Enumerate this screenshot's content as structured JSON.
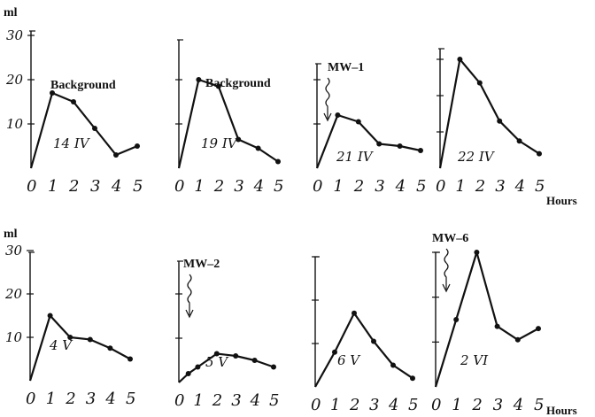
{
  "figure": {
    "ylabel_top": "ml",
    "ylabel_bottom": "ml",
    "xunit_top": "Hours",
    "xunit_bottom": "Hours",
    "top_ytick_labels": [
      "10",
      "20",
      "30"
    ],
    "bottom_ytick_labels": [
      "10",
      "20",
      "30"
    ],
    "xtick_labels": [
      "0",
      "1",
      "2",
      "3",
      "4",
      "5"
    ]
  },
  "chart_data": [
    {
      "type": "line",
      "row": "top",
      "x": [
        0,
        1,
        2,
        3,
        4,
        5
      ],
      "values": [
        0,
        17,
        15,
        9,
        3,
        5
      ],
      "date_label": "14 IV",
      "annotation": "Background",
      "show_yticks": true,
      "show_xticks": true,
      "ylim": [
        0,
        30
      ],
      "xlim": [
        0,
        5.5
      ]
    },
    {
      "type": "line",
      "row": "top",
      "x": [
        0,
        1,
        2,
        3,
        4,
        5
      ],
      "values": [
        0,
        20,
        18.5,
        6.5,
        4.5,
        1.5
      ],
      "date_label": "19 IV",
      "annotation": "Background",
      "show_yticks": false,
      "show_xticks": false,
      "ylim": [
        0,
        30
      ],
      "xlim": [
        0,
        5.5
      ]
    },
    {
      "type": "line",
      "row": "top",
      "x": [
        0,
        1,
        2,
        3,
        4,
        5
      ],
      "values": [
        0,
        12,
        10.5,
        5.5,
        5,
        4
      ],
      "date_label": "21 IV",
      "annotation": "MW–1",
      "show_yticks": false,
      "show_xticks": false,
      "ylim": [
        0,
        30
      ],
      "xlim": [
        0,
        5.5
      ]
    },
    {
      "type": "line",
      "row": "top",
      "x": [
        0,
        1,
        2,
        3,
        4,
        5
      ],
      "values": [
        0,
        30,
        23.5,
        13,
        7.5,
        4
      ],
      "date_label": "22 IV",
      "annotation": "",
      "show_yticks": false,
      "show_xticks": false,
      "ylim": [
        0,
        30
      ],
      "xlim": [
        0,
        5.5
      ]
    },
    {
      "type": "line",
      "row": "bottom",
      "x": [
        0,
        1,
        2,
        3,
        4,
        5
      ],
      "values": [
        0,
        15,
        10,
        9.5,
        7.5,
        5
      ],
      "date_label": "4 V",
      "annotation": "",
      "show_yticks": true,
      "show_xticks": true,
      "ylim": [
        0,
        30
      ],
      "xlim": [
        0,
        5.5
      ]
    },
    {
      "type": "line",
      "row": "bottom",
      "x": [
        0,
        0.5,
        1,
        2,
        3,
        4,
        5
      ],
      "values": [
        0,
        2,
        3.5,
        6.5,
        6,
        5,
        3.5
      ],
      "date_label": "5 V",
      "annotation": "MW–2",
      "show_yticks": false,
      "show_xticks": false,
      "ylim": [
        0,
        30
      ],
      "xlim": [
        0,
        5.5
      ]
    },
    {
      "type": "line",
      "row": "bottom",
      "x": [
        0,
        1,
        2,
        3,
        4,
        5
      ],
      "values": [
        0,
        8,
        17,
        10.5,
        5,
        2
      ],
      "date_label": "6 V",
      "annotation": "",
      "show_yticks": false,
      "show_xticks": false,
      "ylim": [
        0,
        30
      ],
      "xlim": [
        0,
        5.5
      ]
    },
    {
      "type": "line",
      "row": "bottom",
      "x": [
        0,
        1,
        2,
        3,
        4,
        5
      ],
      "values": [
        0,
        15,
        30,
        13.5,
        10.5,
        13
      ],
      "date_label": "2 VI",
      "annotation": "MW–6",
      "show_yticks": false,
      "show_xticks": false,
      "ylim": [
        0,
        30
      ],
      "xlim": [
        0,
        5.5
      ]
    }
  ]
}
